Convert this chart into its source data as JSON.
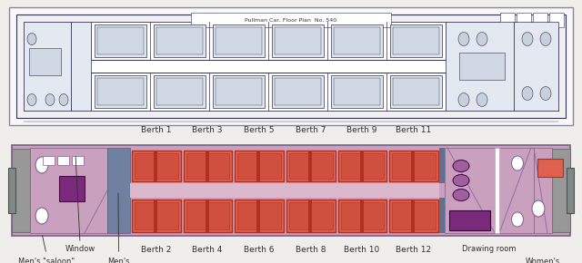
{
  "fig_width": 6.4,
  "fig_height": 2.9,
  "bg_color": "#f0eeea",
  "car_bg": "#c9a0be",
  "berth_color": "#e06050",
  "berth_dark": "#b03020",
  "berth_inner": "#d05040",
  "room_purple": "#7a2a7a",
  "room_mid_purple": "#a060a0",
  "corridor_color": "#ddb8cc",
  "gray_end": "#989898",
  "gray_dark": "#606060",
  "white": "#ffffff",
  "blueprint_bg": "#dde4ee",
  "blueprint_line": "#303050",
  "text_color": "#303030",
  "top_labels": [
    "Berth 1",
    "Berth 3",
    "Berth 5",
    "Berth 7",
    "Berth 9",
    "Berth 11"
  ],
  "bottom_labels": [
    "Berth 2",
    "Berth 4",
    "Berth 6",
    "Berth 8",
    "Berth 10",
    "Berth 12"
  ]
}
